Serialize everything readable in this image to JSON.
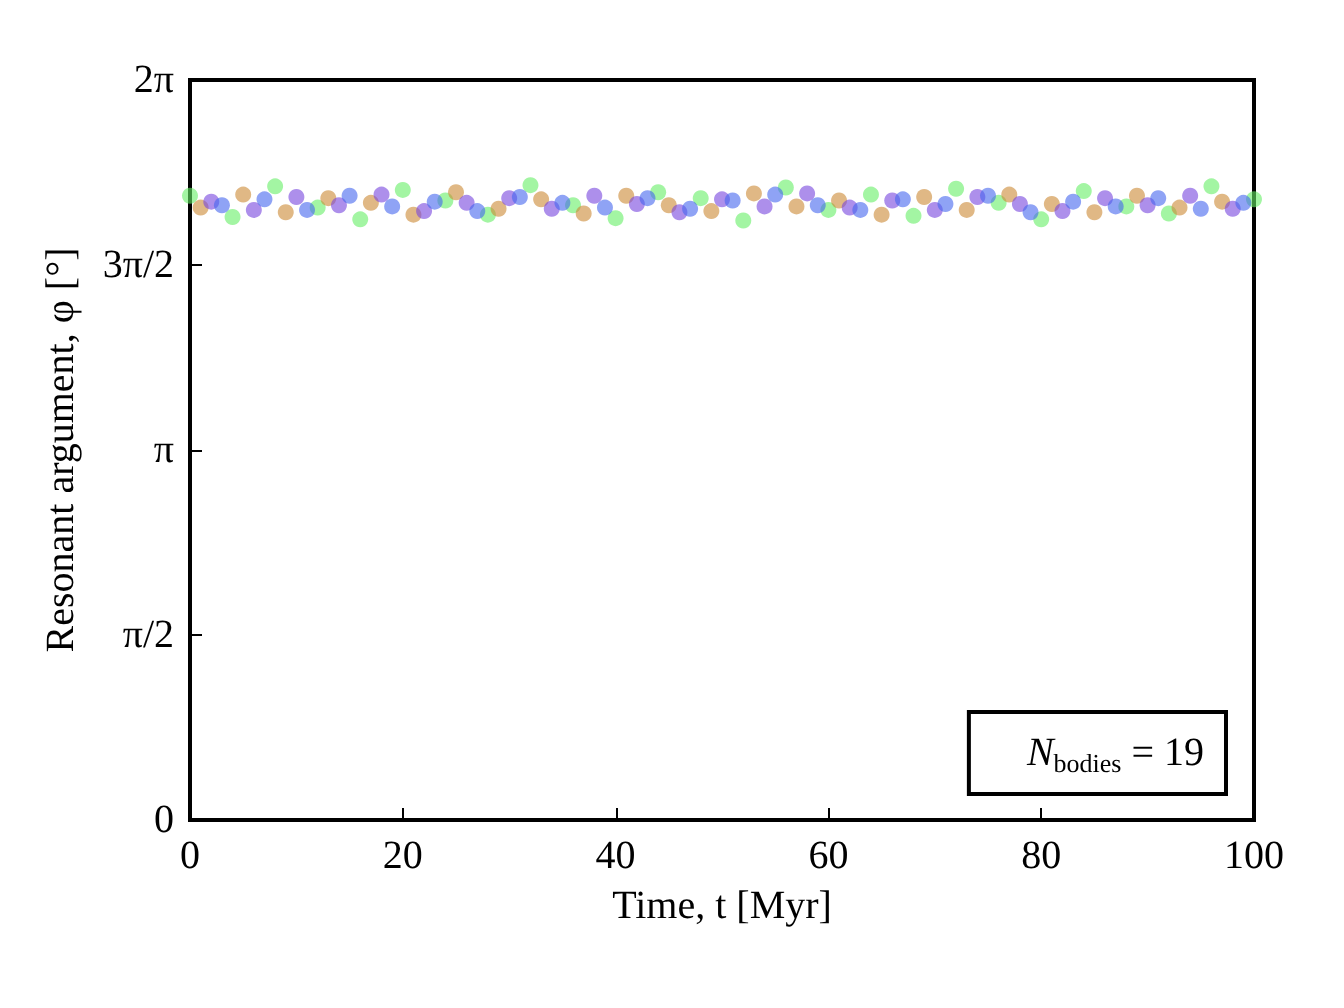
{
  "chart_data": {
    "type": "scatter",
    "xlabel": "Time, t [Myr]",
    "ylabel": "Resonant argument, φ [°]",
    "xlim": [
      0,
      100
    ],
    "xticks": [
      0,
      20,
      40,
      60,
      80,
      100
    ],
    "ylim": [
      0,
      6.2832
    ],
    "yticks": [
      {
        "value": 0,
        "label": "0"
      },
      {
        "value": 1.5708,
        "label": "π/2"
      },
      {
        "value": 3.1416,
        "label": "π"
      },
      {
        "value": 4.7124,
        "label": "3π/2"
      },
      {
        "value": 6.2832,
        "label": "2π"
      }
    ],
    "grid": false,
    "marker": "circle",
    "annotations": [
      "N$_{bodies}$ = 19"
    ],
    "series": [
      {
        "color": "#66ee66",
        "x": [
          0,
          4,
          8,
          12,
          16,
          20,
          24,
          28,
          32,
          36,
          40,
          44,
          48,
          52,
          56,
          60,
          64,
          68,
          72,
          76,
          80,
          84,
          88,
          92,
          96,
          100
        ],
        "values": [
          5.3,
          5.12,
          5.38,
          5.2,
          5.1,
          5.35,
          5.26,
          5.14,
          5.39,
          5.22,
          5.11,
          5.33,
          5.28,
          5.09,
          5.37,
          5.18,
          5.31,
          5.13,
          5.36,
          5.24,
          5.1,
          5.34,
          5.21,
          5.15,
          5.38,
          5.27
        ]
      },
      {
        "color": "#cc8833",
        "x": [
          1,
          5,
          9,
          13,
          17,
          21,
          25,
          29,
          33,
          37,
          41,
          45,
          49,
          53,
          57,
          61,
          65,
          69,
          73,
          77,
          81,
          85,
          89,
          93,
          97
        ],
        "values": [
          5.2,
          5.31,
          5.16,
          5.28,
          5.24,
          5.14,
          5.33,
          5.19,
          5.27,
          5.15,
          5.3,
          5.22,
          5.17,
          5.32,
          5.21,
          5.26,
          5.14,
          5.29,
          5.18,
          5.31,
          5.23,
          5.16,
          5.3,
          5.2,
          5.25
        ]
      },
      {
        "color": "#7744dd",
        "x": [
          2,
          6,
          10,
          14,
          18,
          22,
          26,
          30,
          34,
          38,
          42,
          46,
          50,
          54,
          58,
          62,
          66,
          70,
          74,
          78,
          82,
          86,
          90,
          94,
          98
        ],
        "values": [
          5.25,
          5.18,
          5.29,
          5.22,
          5.31,
          5.17,
          5.24,
          5.28,
          5.19,
          5.3,
          5.23,
          5.16,
          5.27,
          5.21,
          5.32,
          5.2,
          5.26,
          5.18,
          5.29,
          5.23,
          5.17,
          5.28,
          5.22,
          5.3,
          5.19
        ]
      },
      {
        "color": "#4466ee",
        "x": [
          3,
          7,
          11,
          15,
          19,
          23,
          27,
          31,
          35,
          39,
          43,
          47,
          51,
          55,
          59,
          63,
          67,
          71,
          75,
          79,
          83,
          87,
          91,
          95,
          99
        ],
        "values": [
          5.22,
          5.27,
          5.18,
          5.3,
          5.21,
          5.25,
          5.17,
          5.29,
          5.24,
          5.2,
          5.28,
          5.19,
          5.26,
          5.31,
          5.22,
          5.18,
          5.27,
          5.23,
          5.3,
          5.16,
          5.25,
          5.21,
          5.28,
          5.19,
          5.24
        ]
      }
    ]
  }
}
